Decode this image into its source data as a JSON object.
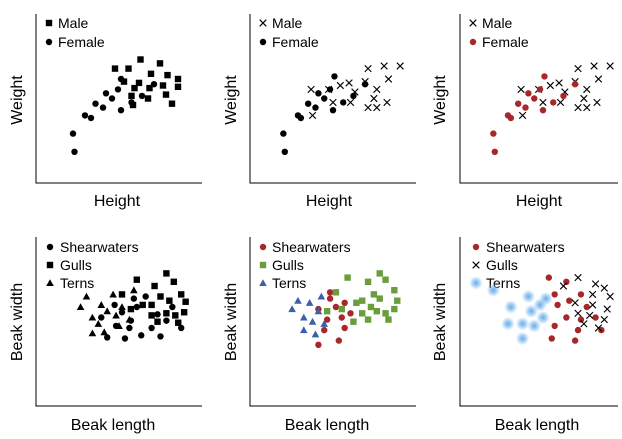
{
  "palette": {
    "black": "#000000",
    "red": "#a8272b",
    "green": "#6a9e3c",
    "blue": "#3d5fa8",
    "glow": "#5aa6e8"
  },
  "chart_data": [
    {
      "type": "scatter",
      "xlabel": "Height",
      "ylabel": "Weight",
      "xlim": [
        0,
        100
      ],
      "ylim": [
        0,
        100
      ],
      "grid": false,
      "legend_position": "top-left",
      "series": [
        {
          "name": "Male",
          "marker": "square",
          "color": "black",
          "points": [
            [
              46,
              78
            ],
            [
              55,
              78
            ],
            [
              63,
              85
            ],
            [
              76,
              82
            ],
            [
              52,
              68
            ],
            [
              62,
              67
            ],
            [
              70,
              74
            ],
            [
              81,
              73
            ],
            [
              59,
              63
            ],
            [
              69,
              63
            ],
            [
              78,
              65
            ],
            [
              88,
              70
            ],
            [
              68,
              55
            ],
            [
              80,
              58
            ],
            [
              88,
              64
            ],
            [
              57,
              57
            ],
            [
              84,
              51
            ],
            [
              58,
              50
            ]
          ]
        },
        {
          "name": "Female",
          "marker": "circle",
          "color": "black",
          "points": [
            [
              18,
              28
            ],
            [
              30,
              40
            ],
            [
              38,
              48
            ],
            [
              44,
              55
            ],
            [
              50,
              46
            ],
            [
              40,
              59
            ],
            [
              48,
              62
            ],
            [
              57,
              52
            ],
            [
              64,
              57
            ],
            [
              72,
              66
            ],
            [
              50,
              70
            ],
            [
              33,
              51
            ],
            [
              26,
              42
            ],
            [
              19,
              14
            ]
          ]
        }
      ]
    },
    {
      "type": "scatter",
      "xlabel": "Height",
      "ylabel": "Weight",
      "xlim": [
        0,
        100
      ],
      "ylim": [
        0,
        100
      ],
      "grid": false,
      "legend_position": "top-left",
      "series": [
        {
          "name": "Male",
          "marker": "x",
          "color": "black",
          "points": [
            [
              74,
              78
            ],
            [
              85,
              80
            ],
            [
              96,
              80
            ],
            [
              88,
              70
            ],
            [
              61,
              67
            ],
            [
              72,
              68
            ],
            [
              55,
              65
            ],
            [
              47,
              62
            ],
            [
              80,
              62
            ],
            [
              65,
              60
            ],
            [
              78,
              55
            ],
            [
              50,
              52
            ],
            [
              62,
              52
            ],
            [
              35,
              62
            ],
            [
              74,
              48
            ],
            [
              87,
              52
            ],
            [
              80,
              48
            ],
            [
              36,
              42
            ]
          ]
        },
        {
          "name": "Female",
          "marker": "circle",
          "color": "black",
          "points": [
            [
              16,
              28
            ],
            [
              28,
              40
            ],
            [
              38,
              48
            ],
            [
              44,
              55
            ],
            [
              50,
              46
            ],
            [
              40,
              59
            ],
            [
              48,
              62
            ],
            [
              57,
              52
            ],
            [
              64,
              57
            ],
            [
              72,
              66
            ],
            [
              51,
              72
            ],
            [
              33,
              51
            ],
            [
              26,
              42
            ],
            [
              17,
              14
            ]
          ]
        }
      ]
    },
    {
      "type": "scatter",
      "xlabel": "Height",
      "ylabel": "Weight",
      "xlim": [
        0,
        100
      ],
      "ylim": [
        0,
        100
      ],
      "grid": false,
      "legend_position": "top-left",
      "series": [
        {
          "name": "Male",
          "marker": "x",
          "color": "black",
          "points": [
            [
              74,
              78
            ],
            [
              85,
              80
            ],
            [
              96,
              80
            ],
            [
              88,
              70
            ],
            [
              61,
              67
            ],
            [
              72,
              68
            ],
            [
              55,
              65
            ],
            [
              47,
              62
            ],
            [
              80,
              62
            ],
            [
              65,
              60
            ],
            [
              78,
              55
            ],
            [
              50,
              52
            ],
            [
              62,
              52
            ],
            [
              35,
              62
            ],
            [
              74,
              48
            ],
            [
              87,
              52
            ],
            [
              80,
              48
            ],
            [
              36,
              42
            ]
          ]
        },
        {
          "name": "Female",
          "marker": "circle",
          "color": "red",
          "points": [
            [
              16,
              28
            ],
            [
              28,
              40
            ],
            [
              38,
              48
            ],
            [
              44,
              55
            ],
            [
              50,
              46
            ],
            [
              40,
              59
            ],
            [
              48,
              62
            ],
            [
              57,
              52
            ],
            [
              64,
              57
            ],
            [
              72,
              66
            ],
            [
              51,
              72
            ],
            [
              33,
              51
            ],
            [
              26,
              42
            ],
            [
              17,
              14
            ]
          ]
        }
      ]
    },
    {
      "type": "scatter",
      "xlabel": "Beak length",
      "ylabel": "Beak width",
      "xlim": [
        0,
        100
      ],
      "ylim": [
        0,
        100
      ],
      "grid": false,
      "legend_position": "top-left",
      "series": [
        {
          "name": "Shearwaters",
          "marker": "circle",
          "color": "black",
          "points": [
            [
              36,
              50
            ],
            [
              45,
              62
            ],
            [
              50,
              55
            ],
            [
              56,
              47
            ],
            [
              60,
              60
            ],
            [
              66,
              70
            ],
            [
              70,
              40
            ],
            [
              55,
              40
            ],
            [
              63,
              33
            ],
            [
              52,
              30
            ],
            [
              74,
              53
            ],
            [
              80,
              47
            ],
            [
              76,
              32
            ],
            [
              90,
              40
            ],
            [
              84,
              60
            ],
            [
              58,
              68
            ],
            [
              46,
              42
            ],
            [
              40,
              31
            ]
          ]
        },
        {
          "name": "Gulls",
          "marker": "square",
          "color": "black",
          "points": [
            [
              60,
              86
            ],
            [
              72,
              80
            ],
            [
              80,
              92
            ],
            [
              90,
              72
            ],
            [
              85,
              84
            ],
            [
              76,
              70
            ],
            [
              70,
              62
            ],
            [
              82,
              66
            ],
            [
              93,
              65
            ],
            [
              86,
              52
            ],
            [
              80,
              54
            ],
            [
              74,
              46
            ],
            [
              88,
              45
            ],
            [
              64,
              62
            ],
            [
              56,
              58
            ],
            [
              92,
              55
            ],
            [
              50,
              72
            ],
            [
              70,
              52
            ]
          ]
        },
        {
          "name": "Terns",
          "marker": "triangle",
          "color": "black",
          "points": [
            [
              22,
              60
            ],
            [
              30,
              50
            ],
            [
              36,
              62
            ],
            [
              44,
              72
            ],
            [
              50,
              60
            ],
            [
              58,
              76
            ],
            [
              48,
              42
            ],
            [
              38,
              36
            ],
            [
              30,
              35
            ],
            [
              40,
              56
            ],
            [
              26,
              70
            ],
            [
              55,
              48
            ],
            [
              46,
              52
            ],
            [
              34,
              44
            ]
          ]
        }
      ]
    },
    {
      "type": "scatter",
      "xlabel": "Beak length",
      "ylabel": "Beak width",
      "xlim": [
        0,
        100
      ],
      "ylim": [
        0,
        100
      ],
      "grid": false,
      "legend_position": "top-left",
      "series": [
        {
          "name": "Shearwaters",
          "marker": "circle",
          "color": "red",
          "points": [
            [
              40,
              58
            ],
            [
              48,
              68
            ],
            [
              52,
              60
            ],
            [
              58,
              64
            ],
            [
              46,
              48
            ],
            [
              56,
              50
            ],
            [
              44,
              38
            ],
            [
              58,
              40
            ],
            [
              54,
              28
            ],
            [
              40,
              24
            ],
            [
              62,
              54
            ],
            [
              48,
              74
            ]
          ]
        },
        {
          "name": "Gulls",
          "marker": "square",
          "color": "green",
          "points": [
            [
              60,
              88
            ],
            [
              74,
              84
            ],
            [
              82,
              92
            ],
            [
              92,
              76
            ],
            [
              86,
              86
            ],
            [
              78,
              72
            ],
            [
              70,
              66
            ],
            [
              82,
              68
            ],
            [
              94,
              66
            ],
            [
              86,
              54
            ],
            [
              80,
              56
            ],
            [
              74,
              48
            ],
            [
              88,
              48
            ],
            [
              66,
              64
            ],
            [
              56,
              58
            ],
            [
              92,
              58
            ],
            [
              52,
              74
            ],
            [
              70,
              54
            ],
            [
              76,
              60
            ],
            [
              64,
              46
            ],
            [
              46,
              56
            ]
          ]
        },
        {
          "name": "Terns",
          "marker": "triangle",
          "color": "blue",
          "points": [
            [
              22,
              58
            ],
            [
              30,
              50
            ],
            [
              34,
              64
            ],
            [
              42,
              70
            ],
            [
              40,
              56
            ],
            [
              30,
              38
            ],
            [
              44,
              44
            ],
            [
              36,
              46
            ],
            [
              26,
              66
            ],
            [
              38,
              34
            ]
          ]
        }
      ]
    },
    {
      "type": "scatter",
      "xlabel": "Beak length",
      "ylabel": "Beak width",
      "xlim": [
        0,
        100
      ],
      "ylim": [
        0,
        100
      ],
      "grid": false,
      "legend_position": "top-left",
      "series": [
        {
          "name": "Shearwaters",
          "marker": "circle",
          "color": "red",
          "points": [
            [
              54,
              88
            ],
            [
              66,
              84
            ],
            [
              58,
              72
            ],
            [
              68,
              66
            ],
            [
              76,
              72
            ],
            [
              66,
              50
            ],
            [
              76,
              48
            ],
            [
              58,
              42
            ],
            [
              74,
              38
            ],
            [
              86,
              50
            ],
            [
              60,
              62
            ],
            [
              80,
              60
            ],
            [
              56,
              30
            ],
            [
              72,
              28
            ],
            [
              90,
              38
            ]
          ]
        },
        {
          "name": "Gulls",
          "marker": "x",
          "color": "black",
          "points": [
            [
              74,
              88
            ],
            [
              86,
              82
            ],
            [
              64,
              80
            ],
            [
              84,
              72
            ],
            [
              92,
              78
            ],
            [
              96,
              70
            ],
            [
              72,
              64
            ],
            [
              84,
              62
            ],
            [
              94,
              58
            ],
            [
              82,
              52
            ],
            [
              92,
              48
            ],
            [
              74,
              54
            ],
            [
              88,
              40
            ],
            [
              78,
              44
            ]
          ]
        },
        {
          "name": "Terns",
          "marker": "glow",
          "color": "glow",
          "points": [
            [
              16,
              76
            ],
            [
              40,
              70
            ],
            [
              52,
              68
            ],
            [
              28,
              60
            ],
            [
              42,
              56
            ],
            [
              50,
              50
            ],
            [
              26,
              44
            ],
            [
              36,
              44
            ],
            [
              44,
              42
            ],
            [
              36,
              30
            ],
            [
              48,
              62
            ]
          ]
        }
      ]
    }
  ]
}
